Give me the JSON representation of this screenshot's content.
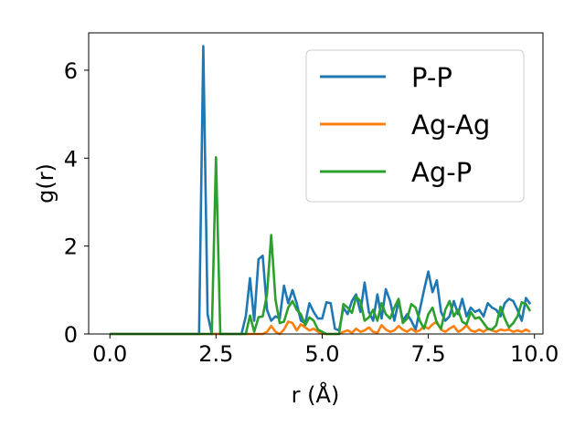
{
  "chart_data": {
    "type": "line",
    "xlabel": "r (Å)",
    "ylabel": "g(r)",
    "xlim": [
      -0.5,
      10.2
    ],
    "ylim": [
      0,
      6.85
    ],
    "xticks": [
      0.0,
      2.5,
      5.0,
      7.5,
      10.0
    ],
    "xtick_labels": [
      "0.0",
      "2.5",
      "5.0",
      "7.5",
      "10.0"
    ],
    "yticks": [
      0,
      2,
      4,
      6
    ],
    "ytick_labels": [
      "0",
      "2",
      "4",
      "6"
    ],
    "grid": false,
    "legend_position": "top-right",
    "series": [
      {
        "name": "P-P",
        "color": "#1f77b4",
        "x": [
          0.0,
          2.1,
          2.2,
          2.3,
          2.4,
          3.0,
          3.1,
          3.2,
          3.3,
          3.4,
          3.5,
          3.6,
          3.7,
          3.8,
          3.9,
          4.0,
          4.1,
          4.2,
          4.3,
          4.4,
          4.5,
          4.6,
          4.7,
          4.8,
          4.9,
          5.0,
          5.1,
          5.2,
          5.3,
          5.4,
          5.5,
          5.6,
          5.7,
          5.8,
          5.9,
          6.0,
          6.1,
          6.2,
          6.3,
          6.4,
          6.5,
          6.6,
          6.7,
          6.8,
          6.9,
          7.0,
          7.1,
          7.2,
          7.3,
          7.4,
          7.5,
          7.6,
          7.7,
          7.8,
          7.9,
          8.0,
          8.1,
          8.2,
          8.3,
          8.4,
          8.5,
          8.6,
          8.7,
          8.8,
          8.9,
          9.0,
          9.1,
          9.2,
          9.3,
          9.4,
          9.5,
          9.6,
          9.7,
          9.8,
          9.9
        ],
        "y": [
          0,
          0,
          6.55,
          0.45,
          0,
          0,
          0,
          0.4,
          1.27,
          0.3,
          1.7,
          1.78,
          0.55,
          0.3,
          0.4,
          0.35,
          1.1,
          0.7,
          1.0,
          0.7,
          0.3,
          0.25,
          0.7,
          0.5,
          0.35,
          0.35,
          0.72,
          0.7,
          0.12,
          0.08,
          0.6,
          0.45,
          0.75,
          0.9,
          0.5,
          1.17,
          0.5,
          0.3,
          0.9,
          0.35,
          1.02,
          0.75,
          0.3,
          0.75,
          0.3,
          0.45,
          0.3,
          0.1,
          0.55,
          1.0,
          1.42,
          0.95,
          1.22,
          0.5,
          0.3,
          0.4,
          0.75,
          0.45,
          0.8,
          0.4,
          0.6,
          0.5,
          0.55,
          0.4,
          0.7,
          0.6,
          0.55,
          0.4,
          0.7,
          0.8,
          0.75,
          0.55,
          0.3,
          0.82,
          0.68
        ]
      },
      {
        "name": "Ag-Ag",
        "color": "#ff7f0e",
        "x": [
          0.0,
          3.6,
          3.7,
          3.8,
          3.9,
          4.0,
          4.1,
          4.2,
          4.3,
          4.4,
          4.5,
          4.6,
          4.7,
          4.8,
          4.9,
          5.0,
          5.4,
          5.5,
          5.6,
          5.7,
          5.8,
          5.9,
          6.0,
          6.1,
          6.2,
          6.3,
          6.4,
          6.5,
          6.6,
          6.7,
          6.8,
          6.9,
          7.0,
          7.1,
          7.2,
          7.3,
          7.4,
          7.5,
          7.6,
          7.7,
          7.8,
          7.9,
          8.0,
          8.1,
          8.2,
          8.3,
          8.4,
          8.5,
          8.6,
          8.7,
          8.8,
          8.9,
          9.0,
          9.1,
          9.2,
          9.3,
          9.4,
          9.5,
          9.6,
          9.7,
          9.8,
          9.9
        ],
        "y": [
          0,
          0,
          0.05,
          0.18,
          0.05,
          0,
          0.1,
          0.28,
          0.25,
          0.08,
          0.22,
          0.15,
          0.08,
          0.12,
          0.05,
          0,
          0,
          0.05,
          0.08,
          0.03,
          0.12,
          0.05,
          0.08,
          0.15,
          0.05,
          0.03,
          0.2,
          0.1,
          0.05,
          0.08,
          0.18,
          0.1,
          0.05,
          0.12,
          0.05,
          0.08,
          0.18,
          0.12,
          0.22,
          0.28,
          0.1,
          0.05,
          0.12,
          0.18,
          0.05,
          0.1,
          0.2,
          0.08,
          0.05,
          0.1,
          0.05,
          0.12,
          0.08,
          0.05,
          0.1,
          0.08,
          0.1,
          0.05,
          0.08,
          0.05,
          0.1,
          0.05
        ]
      },
      {
        "name": "Ag-P",
        "color": "#2ca02c",
        "x": [
          0.0,
          2.4,
          2.5,
          2.6,
          3.2,
          3.3,
          3.4,
          3.5,
          3.6,
          3.7,
          3.8,
          3.9,
          4.0,
          4.1,
          4.2,
          4.3,
          4.4,
          4.5,
          4.6,
          4.7,
          4.8,
          4.9,
          5.0,
          5.1,
          5.2,
          5.3,
          5.4,
          5.5,
          5.6,
          5.7,
          5.8,
          5.9,
          6.0,
          6.1,
          6.2,
          6.3,
          6.4,
          6.5,
          6.6,
          6.7,
          6.8,
          6.9,
          7.0,
          7.1,
          7.2,
          7.3,
          7.4,
          7.5,
          7.6,
          7.7,
          7.8,
          7.9,
          8.0,
          8.1,
          8.2,
          8.3,
          8.4,
          8.5,
          8.6,
          8.7,
          8.8,
          8.9,
          9.0,
          9.1,
          9.2,
          9.3,
          9.4,
          9.5,
          9.6,
          9.7,
          9.8,
          9.9
        ],
        "y": [
          0,
          0,
          4.02,
          0,
          0,
          0.42,
          0.05,
          0.38,
          0.4,
          0.9,
          2.25,
          0.78,
          0.25,
          0.28,
          0.6,
          0.75,
          0.55,
          0.45,
          0.2,
          0.38,
          0.3,
          0.1,
          0.05,
          0.0,
          0.0,
          0.0,
          0.0,
          0.68,
          0.6,
          0.48,
          0.85,
          0.75,
          0.3,
          0.38,
          0.55,
          0.3,
          0.7,
          0.45,
          0.35,
          0.6,
          0.8,
          0.25,
          0.35,
          0.68,
          0.6,
          0.3,
          0.12,
          0.45,
          0.6,
          0.25,
          0.12,
          0.55,
          0.75,
          0.4,
          0.55,
          0.28,
          0.22,
          0.5,
          0.35,
          0.38,
          0.25,
          0.12,
          0.1,
          0.2,
          0.62,
          0.35,
          0.15,
          0.25,
          0.4,
          0.72,
          0.68,
          0.52
        ]
      }
    ]
  }
}
